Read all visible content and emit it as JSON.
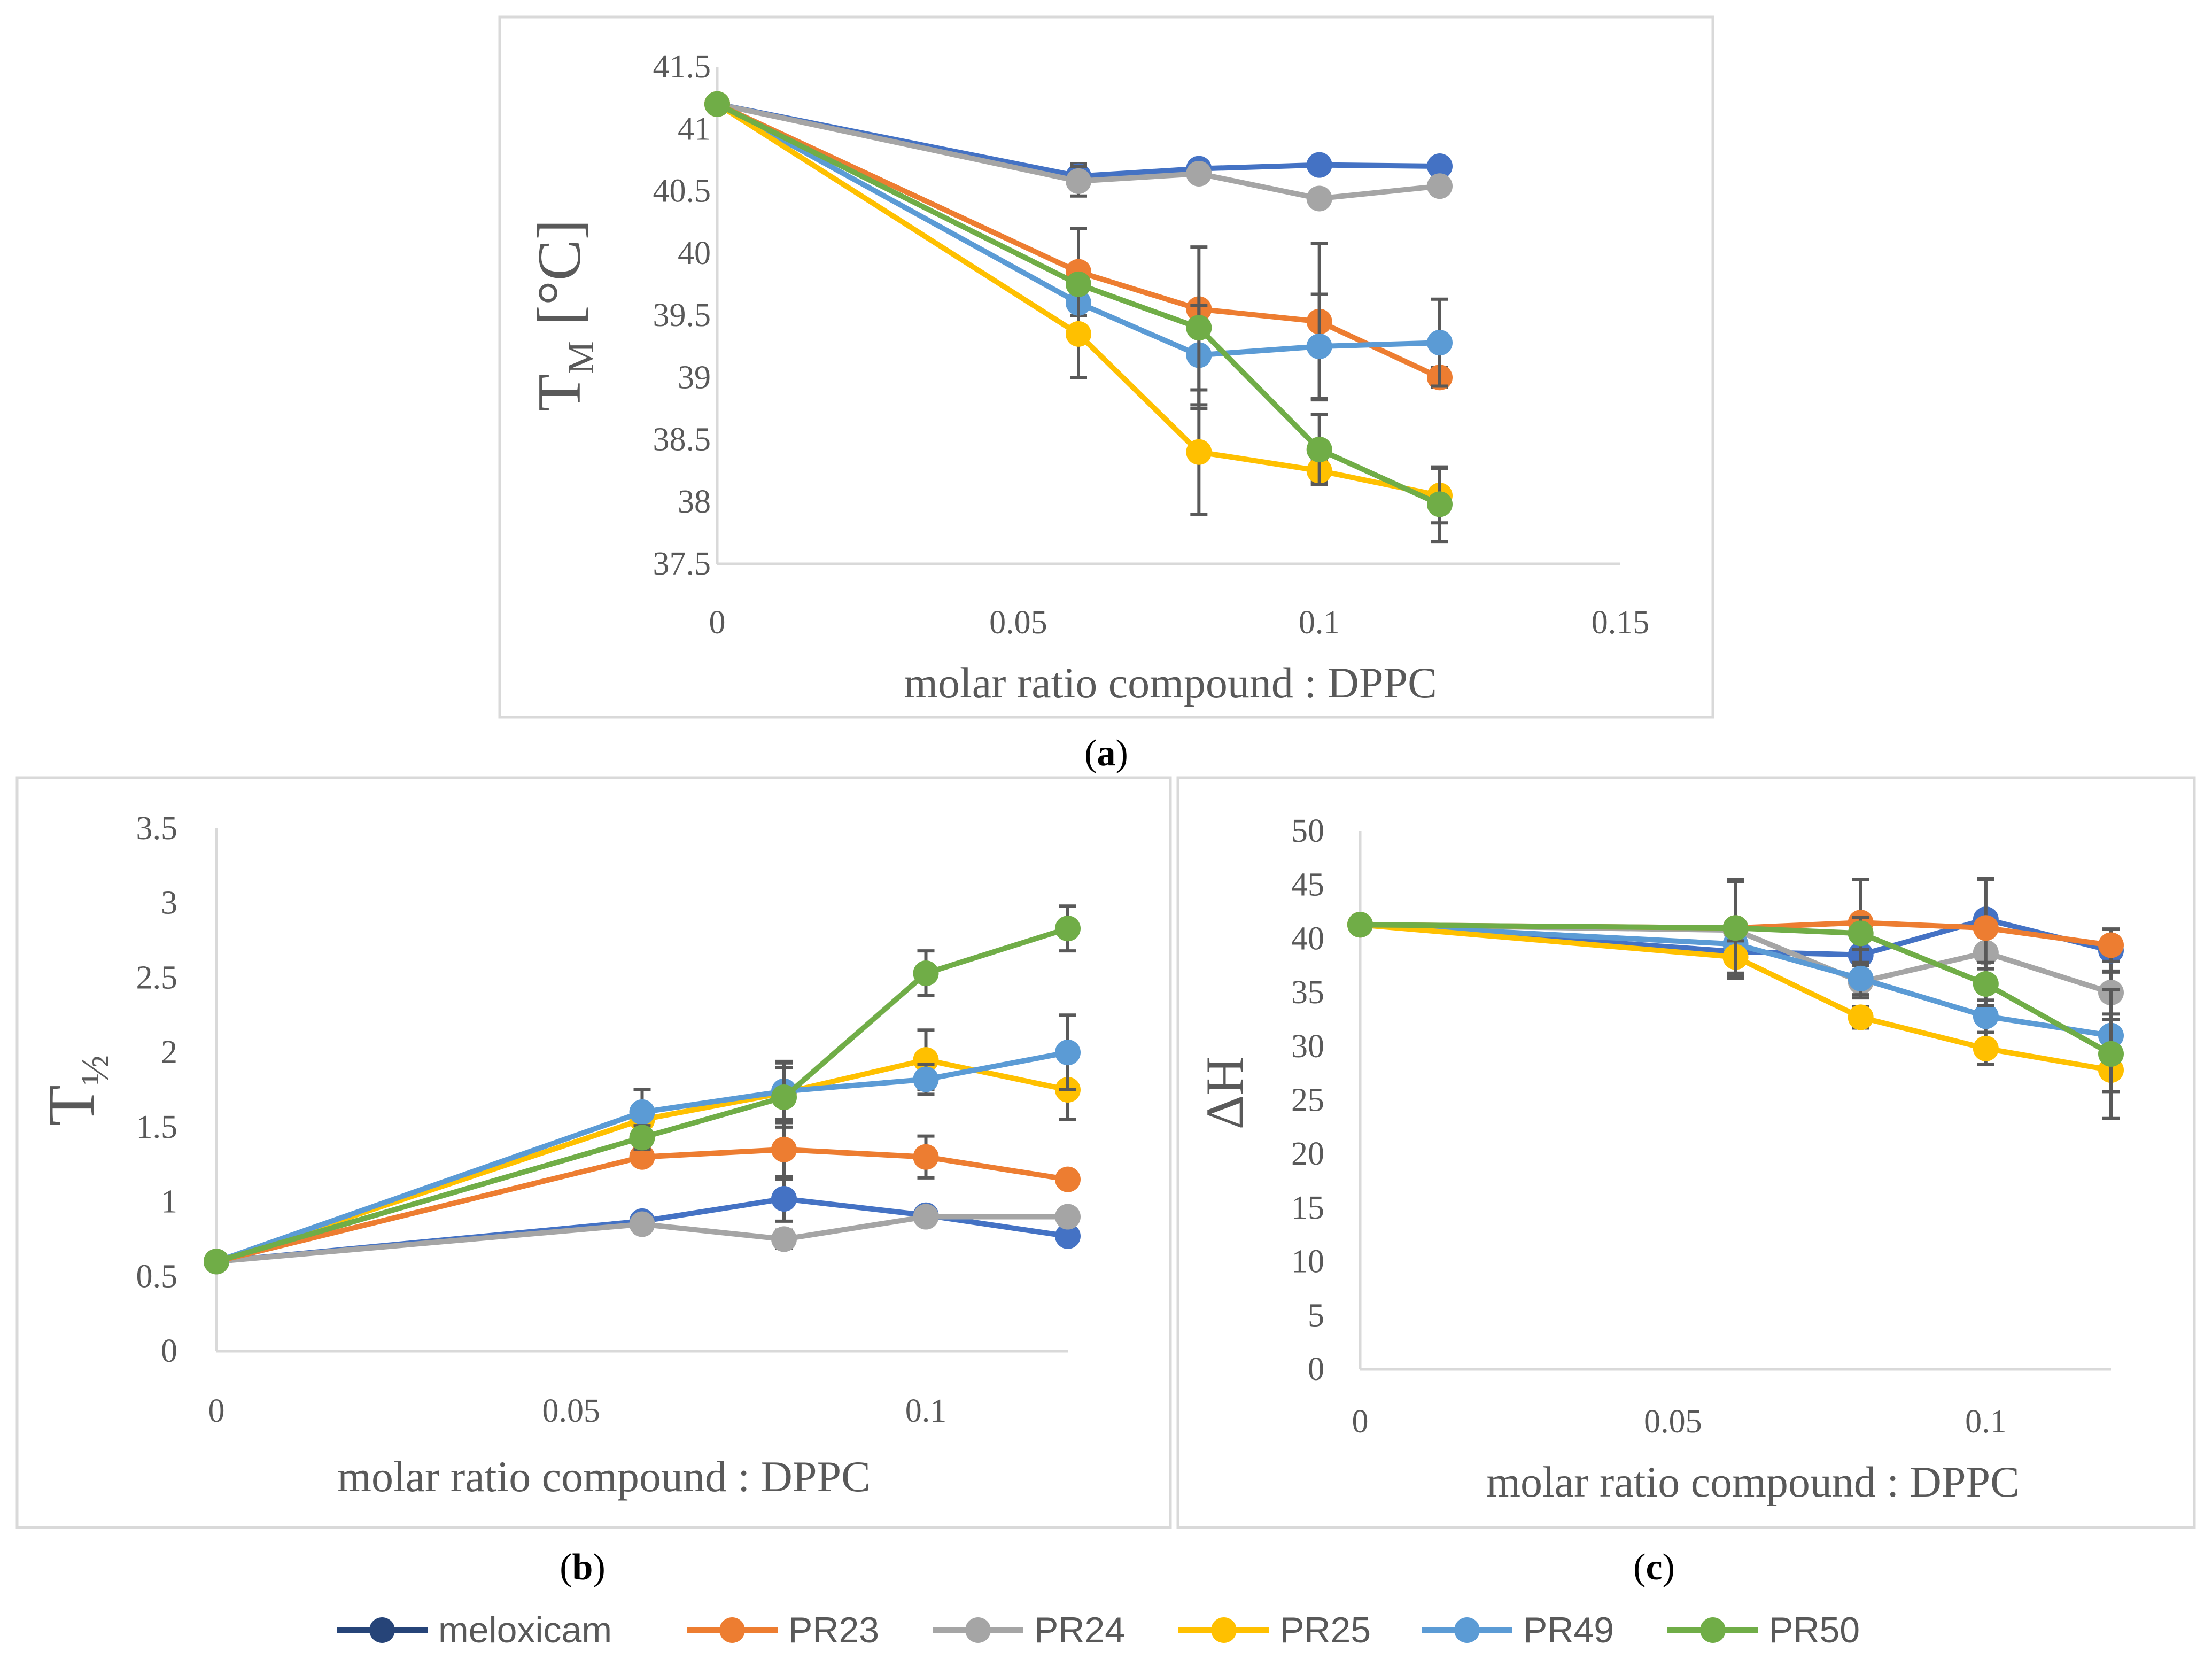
{
  "colors": {
    "meloxicam": "#4472c4",
    "PR23": "#ed7d31",
    "PR24": "#a5a5a5",
    "PR25": "#ffc000",
    "PR49": "#5b9bd5",
    "PR50": "#70ad47",
    "legend_meloxicam": "#264478"
  },
  "legend": [
    "meloxicam",
    "PR23",
    "PR24",
    "PR25",
    "PR49",
    "PR50"
  ],
  "chart_data": [
    {
      "panel": "(a)",
      "panel_letter": "a",
      "type": "line",
      "xlabel": "molar ratio compound : DPPC",
      "ylabel_main": "T",
      "ylabel_sub": "M",
      "ylabel_tail": " [°C]",
      "xlim": [
        0,
        0.15
      ],
      "ylim": [
        37.5,
        41.5
      ],
      "xticks": [
        0,
        0.05,
        0.1,
        0.15
      ],
      "xtick_labels": [
        "0",
        "0.05",
        "0.1",
        "0.15"
      ],
      "yticks": [
        37.5,
        38,
        38.5,
        39,
        39.5,
        40,
        40.5,
        41,
        41.5
      ],
      "ytick_labels": [
        "37.5",
        "38",
        "38.5",
        "39",
        "39.5",
        "40",
        "40.5",
        "41",
        "41.5"
      ],
      "x": [
        0,
        0.06,
        0.08,
        0.1,
        0.12
      ],
      "series": [
        {
          "name": "meloxicam",
          "values": [
            41.2,
            40.62,
            40.68,
            40.71,
            40.7
          ],
          "errors": [
            0,
            0.1,
            0.04,
            0.03,
            0.03
          ]
        },
        {
          "name": "PR24",
          "values": [
            41.2,
            40.58,
            40.64,
            40.44,
            40.54
          ],
          "errors": [
            0,
            0.12,
            0.04,
            0.04,
            0.05
          ]
        },
        {
          "name": "PR23",
          "values": [
            41.2,
            39.85,
            39.55,
            39.45,
            39.0
          ],
          "errors": [
            0,
            0.35,
            0.06,
            0.63,
            0.08
          ]
        },
        {
          "name": "PR49",
          "values": [
            41.2,
            39.6,
            39.18,
            39.25,
            39.28
          ],
          "errors": [
            0,
            0.1,
            0.4,
            0.42,
            0.35
          ]
        },
        {
          "name": "PR25",
          "values": [
            41.2,
            39.35,
            38.4,
            38.25,
            38.05
          ],
          "errors": [
            0,
            0.35,
            0.5,
            0.09,
            0.22
          ]
        },
        {
          "name": "PR50",
          "values": [
            41.2,
            39.75,
            39.4,
            38.42,
            37.98
          ],
          "errors": [
            0,
            0.05,
            0.65,
            0.28,
            0.3
          ]
        }
      ]
    },
    {
      "panel": "(b)",
      "panel_letter": "b",
      "type": "line",
      "xlabel": "molar ratio compound : DPPC",
      "ylabel_main": "T",
      "ylabel_sub": "½",
      "ylabel_tail": "",
      "xlim": [
        0,
        0.12
      ],
      "ylim": [
        0,
        3.5
      ],
      "xticks": [
        0,
        0.05,
        0.1
      ],
      "xtick_labels": [
        "0",
        "0.05",
        "0.1"
      ],
      "yticks": [
        0,
        0.5,
        1,
        1.5,
        2,
        2.5,
        3,
        3.5
      ],
      "ytick_labels": [
        "0",
        "0.5",
        "1",
        "1.5",
        "2",
        "2.5",
        "3",
        "3.5"
      ],
      "x": [
        0,
        0.06,
        0.08,
        0.1,
        0.12
      ],
      "series": [
        {
          "name": "meloxicam",
          "values": [
            0.6,
            0.87,
            1.02,
            0.91,
            0.77
          ],
          "errors": [
            0,
            0.05,
            0.15,
            0.05,
            0.03
          ]
        },
        {
          "name": "PR24",
          "values": [
            0.6,
            0.85,
            0.75,
            0.9,
            0.9
          ],
          "errors": [
            0,
            0.05,
            0.06,
            0.05,
            0.03
          ]
        },
        {
          "name": "PR23",
          "values": [
            0.6,
            1.3,
            1.35,
            1.3,
            1.15
          ],
          "errors": [
            0,
            0.03,
            0.2,
            0.14,
            0.05
          ]
        },
        {
          "name": "PR25",
          "values": [
            0.6,
            1.55,
            1.73,
            1.95,
            1.75
          ],
          "errors": [
            0,
            0.05,
            0.2,
            0.2,
            0.2
          ]
        },
        {
          "name": "PR49",
          "values": [
            0.6,
            1.6,
            1.74,
            1.82,
            2.0
          ],
          "errors": [
            0,
            0.15,
            0.2,
            0.1,
            0.25
          ]
        },
        {
          "name": "PR50",
          "values": [
            0.6,
            1.43,
            1.7,
            2.53,
            2.83
          ],
          "errors": [
            0,
            0.08,
            0.2,
            0.15,
            0.15
          ]
        }
      ]
    },
    {
      "panel": "(c)",
      "panel_letter": "c",
      "type": "line",
      "xlabel": "molar ratio compound : DPPC",
      "ylabel_main": "ΔH",
      "ylabel_sub": "",
      "ylabel_tail": "",
      "xlim": [
        0,
        0.12
      ],
      "ylim": [
        0,
        50
      ],
      "xticks": [
        0,
        0.05,
        0.1
      ],
      "xtick_labels": [
        "0",
        "0.05",
        "0.1"
      ],
      "yticks": [
        0,
        5,
        10,
        15,
        20,
        25,
        30,
        35,
        40,
        45,
        50
      ],
      "ytick_labels": [
        "0",
        "5",
        "10",
        "15",
        "20",
        "25",
        "30",
        "35",
        "40",
        "45",
        "50"
      ],
      "x": [
        0,
        0.06,
        0.08,
        0.1,
        0.12
      ],
      "series": [
        {
          "name": "meloxicam",
          "values": [
            41.3,
            38.8,
            38.5,
            41.8,
            38.9
          ],
          "errors": [
            0,
            2.0,
            1.5,
            3.8,
            2.0
          ]
        },
        {
          "name": "PR24",
          "values": [
            41.3,
            40.8,
            36.0,
            38.7,
            35.0
          ],
          "errors": [
            0,
            4.5,
            1.5,
            1.5,
            2.0
          ]
        },
        {
          "name": "PR23",
          "values": [
            41.3,
            41.0,
            41.5,
            41.0,
            39.4
          ],
          "errors": [
            0,
            4.5,
            4.0,
            4.5,
            1.5
          ]
        },
        {
          "name": "PR49",
          "values": [
            41.3,
            39.5,
            36.3,
            32.8,
            31.0
          ],
          "errors": [
            0,
            1.5,
            1.5,
            1.5,
            1.5
          ]
        },
        {
          "name": "PR25",
          "values": [
            41.3,
            38.3,
            32.7,
            29.8,
            27.8
          ],
          "errors": [
            0,
            1.5,
            1.0,
            1.5,
            2.0
          ]
        },
        {
          "name": "PR50",
          "values": [
            41.3,
            41.0,
            40.5,
            35.8,
            29.3
          ],
          "errors": [
            0,
            4.5,
            1.5,
            2.0,
            6.0
          ]
        }
      ]
    }
  ]
}
